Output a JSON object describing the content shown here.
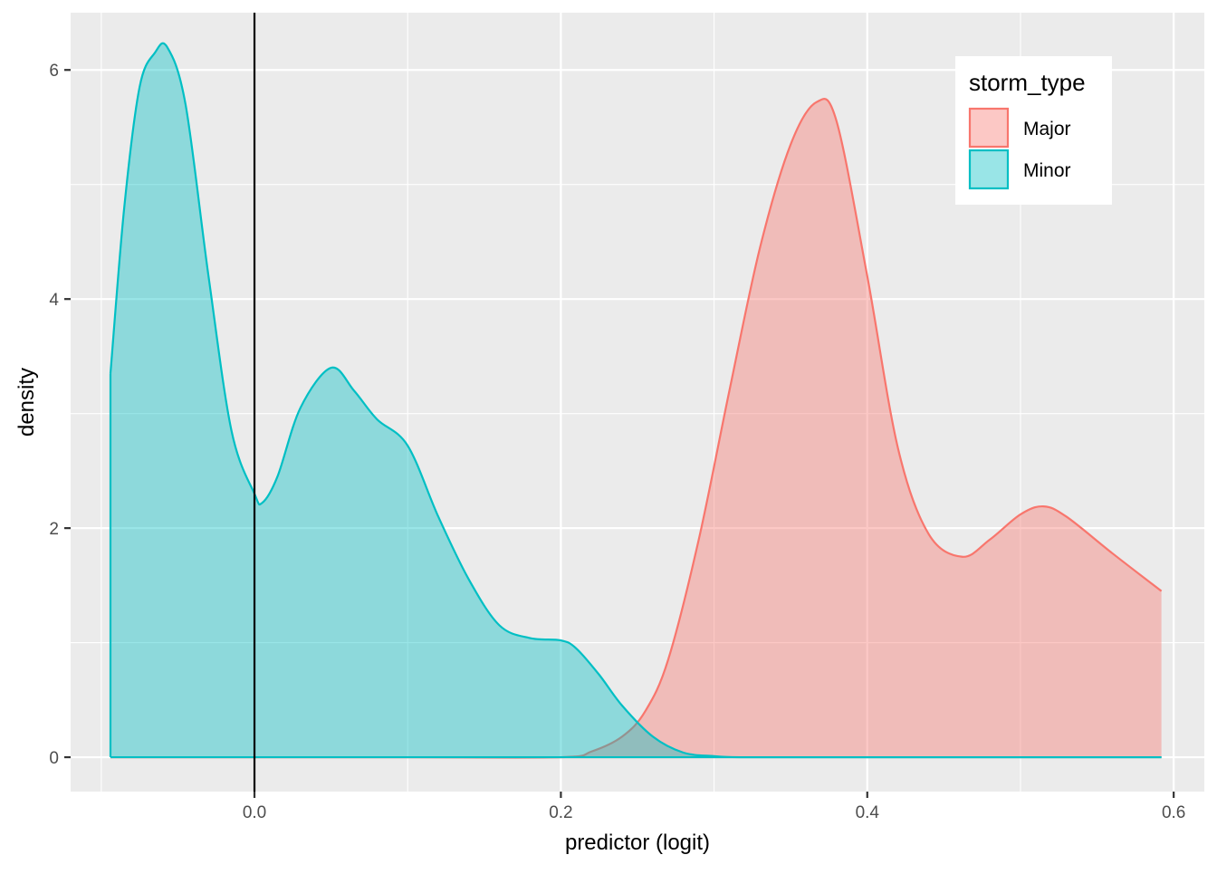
{
  "chart_data": {
    "type": "area",
    "subtype": "density",
    "title": "",
    "xlabel": "predictor (logit)",
    "ylabel": "density",
    "xlim": [
      -0.12,
      0.62
    ],
    "ylim": [
      -0.3,
      6.5
    ],
    "x_ticks": [
      {
        "value": 0.0,
        "label": "0.0"
      },
      {
        "value": 0.2,
        "label": "0.2"
      },
      {
        "value": 0.4,
        "label": "0.4"
      },
      {
        "value": 0.6,
        "label": "0.6"
      }
    ],
    "y_ticks": [
      {
        "value": 0,
        "label": "0"
      },
      {
        "value": 2,
        "label": "2"
      },
      {
        "value": 4,
        "label": "4"
      },
      {
        "value": 6,
        "label": "6"
      }
    ],
    "grid": true,
    "reference_line_x": 0,
    "legend": {
      "title": "storm_type",
      "position": "top-right"
    },
    "series": [
      {
        "name": "Major",
        "color": "#F8766D",
        "fill": "#F8766D",
        "x": [
          -0.094,
          0.0,
          0.1,
          0.2,
          0.22,
          0.24,
          0.255,
          0.27,
          0.29,
          0.31,
          0.33,
          0.35,
          0.367,
          0.38,
          0.4,
          0.42,
          0.44,
          0.462,
          0.48,
          0.5,
          0.515,
          0.53,
          0.56,
          0.592
        ],
        "y": [
          0.0,
          0.0,
          0.0,
          0.0,
          0.05,
          0.18,
          0.4,
          0.85,
          1.9,
          3.2,
          4.45,
          5.35,
          5.72,
          5.55,
          4.2,
          2.7,
          1.95,
          1.75,
          1.9,
          2.12,
          2.19,
          2.1,
          1.78,
          1.45
        ]
      },
      {
        "name": "Minor",
        "color": "#00BFC4",
        "fill": "#00BFC4",
        "x": [
          -0.094,
          -0.085,
          -0.075,
          -0.065,
          -0.057,
          -0.045,
          -0.03,
          -0.015,
          0.0,
          0.005,
          0.015,
          0.03,
          0.05,
          0.065,
          0.08,
          0.1,
          0.12,
          0.14,
          0.16,
          0.18,
          0.2,
          0.21,
          0.225,
          0.24,
          0.26,
          0.28,
          0.3,
          0.32,
          0.4,
          0.5,
          0.592
        ],
        "y": [
          3.35,
          4.8,
          5.85,
          6.15,
          6.2,
          5.7,
          4.2,
          2.85,
          2.3,
          2.22,
          2.45,
          3.05,
          3.4,
          3.2,
          2.95,
          2.72,
          2.1,
          1.55,
          1.15,
          1.04,
          1.02,
          0.95,
          0.72,
          0.45,
          0.18,
          0.04,
          0.01,
          0.0,
          0.0,
          0.0,
          0.0
        ]
      }
    ]
  }
}
